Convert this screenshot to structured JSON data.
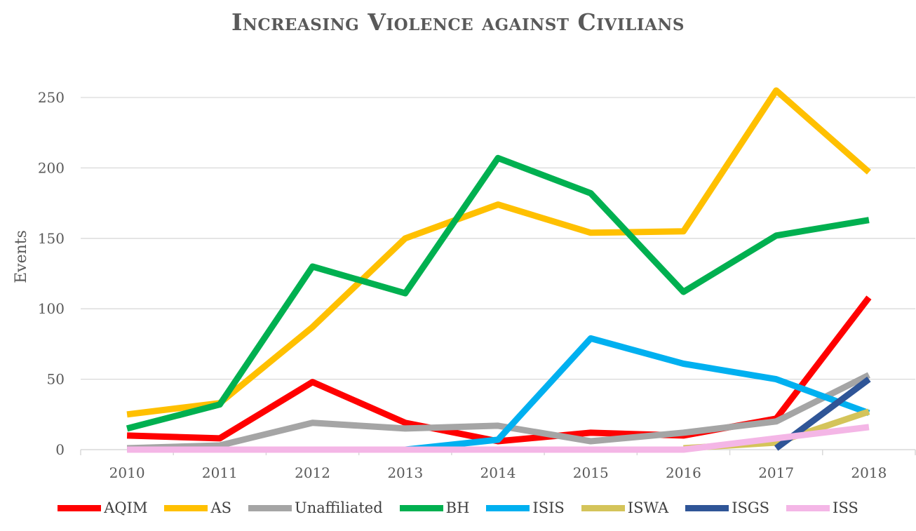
{
  "chart_data": {
    "type": "line",
    "title": "Increasing Violence against Civilians",
    "xlabel": "",
    "ylabel": "Events",
    "ylim": [
      0,
      250
    ],
    "yticks": [
      0,
      50,
      100,
      150,
      200,
      250
    ],
    "grid": "horizontal",
    "legend_position": "bottom",
    "categories": [
      "2010",
      "2011",
      "2012",
      "2013",
      "2014",
      "2015",
      "2016",
      "2017",
      "2018"
    ],
    "series": [
      {
        "name": "AQIM",
        "color": "#FF0000",
        "values": [
          10,
          8,
          48,
          19,
          6,
          12,
          10,
          22,
          108
        ]
      },
      {
        "name": "AS",
        "color": "#FFC000",
        "values": [
          25,
          33,
          87,
          150,
          174,
          154,
          155,
          255,
          197
        ]
      },
      {
        "name": "Unaffiliated",
        "color": "#A5A5A5",
        "values": [
          1,
          3,
          19,
          15,
          17,
          6,
          12,
          20,
          53
        ]
      },
      {
        "name": "BH",
        "color": "#00B050",
        "values": [
          15,
          32,
          130,
          111,
          207,
          182,
          112,
          152,
          163
        ]
      },
      {
        "name": "ISIS",
        "color": "#00B0F0",
        "values": [
          null,
          null,
          null,
          0,
          7,
          79,
          61,
          50,
          26
        ]
      },
      {
        "name": "ISWA",
        "color": "#D4C45A",
        "values": [
          null,
          null,
          null,
          null,
          null,
          null,
          1,
          5,
          27
        ]
      },
      {
        "name": "ISGS",
        "color": "#2F5597",
        "values": [
          null,
          null,
          null,
          null,
          null,
          null,
          null,
          1,
          50
        ]
      },
      {
        "name": "ISS",
        "color": "#F4B6E6",
        "values": [
          0,
          0,
          0,
          0,
          0,
          0,
          0,
          8,
          16
        ]
      }
    ]
  }
}
